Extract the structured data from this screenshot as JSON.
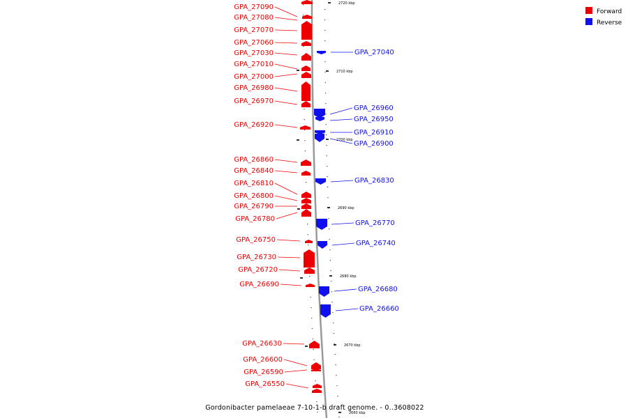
{
  "title": "Gordonibacter pamelaeae 7-10-1-b draft genome. - 0..3608022",
  "colors": {
    "forward": "#ee0000",
    "reverse": "#1010ee",
    "backbone": "#999999"
  },
  "legend": [
    {
      "label": "Forward",
      "color": "#ee0000"
    },
    {
      "label": "Reverse",
      "color": "#1010ee"
    }
  ],
  "ticks": [
    {
      "label": "2720 kbp"
    },
    {
      "label": "2710 kbp"
    },
    {
      "label": "2700 kbp"
    },
    {
      "label": "2690 kbp"
    },
    {
      "label": "2680 kbp"
    },
    {
      "label": "2670 kbp"
    },
    {
      "label": "2660 kbp"
    }
  ],
  "forward_genes": [
    {
      "name": "GPA_27090"
    },
    {
      "name": "GPA_27080"
    },
    {
      "name": "GPA_27070"
    },
    {
      "name": "GPA_27060"
    },
    {
      "name": "GPA_27030"
    },
    {
      "name": "GPA_27010"
    },
    {
      "name": "GPA_27000"
    },
    {
      "name": "GPA_26980"
    },
    {
      "name": "GPA_26970"
    },
    {
      "name": "GPA_26920"
    },
    {
      "name": "GPA_26860"
    },
    {
      "name": "GPA_26840"
    },
    {
      "name": "GPA_26810"
    },
    {
      "name": "GPA_26800"
    },
    {
      "name": "GPA_26790"
    },
    {
      "name": "GPA_26780"
    },
    {
      "name": "GPA_26750"
    },
    {
      "name": "GPA_26730"
    },
    {
      "name": "GPA_26720"
    },
    {
      "name": "GPA_26690"
    },
    {
      "name": "GPA_26630"
    },
    {
      "name": "GPA_26600"
    },
    {
      "name": "GPA_26590"
    },
    {
      "name": "GPA_26550"
    }
  ],
  "reverse_genes": [
    {
      "name": "GPA_27040"
    },
    {
      "name": "GPA_26960"
    },
    {
      "name": "GPA_26950"
    },
    {
      "name": "GPA_26910"
    },
    {
      "name": "GPA_26900"
    },
    {
      "name": "GPA_26830"
    },
    {
      "name": "GPA_26770"
    },
    {
      "name": "GPA_26740"
    },
    {
      "name": "GPA_26680"
    },
    {
      "name": "GPA_26660"
    }
  ]
}
